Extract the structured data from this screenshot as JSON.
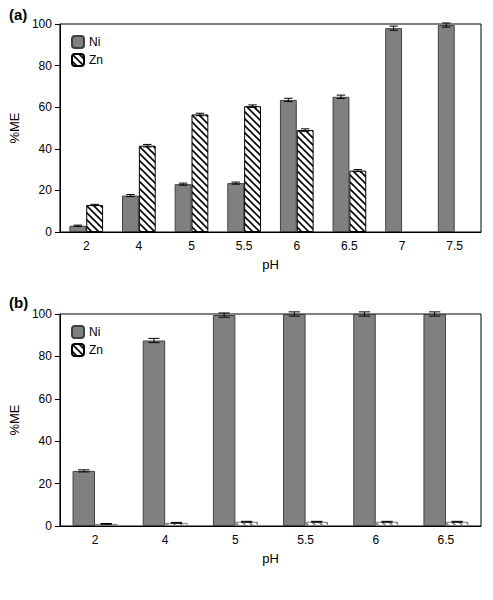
{
  "chart_data": [
    {
      "type": "bar",
      "title": "(a)",
      "x_label": "pH",
      "y_label": "%ME",
      "categories": [
        "2",
        "4",
        "5",
        "5.5",
        "6",
        "6.5",
        "7",
        "7.5"
      ],
      "series": [
        {
          "name": "Ni",
          "color": "#808080",
          "values": [
            3,
            17.5,
            23,
            23.5,
            63.5,
            65,
            98,
            99.5
          ],
          "errors": [
            0.3,
            0.5,
            0.5,
            0.5,
            0.8,
            0.8,
            1,
            1
          ]
        },
        {
          "name": "Zn",
          "color": "#000000",
          "values": [
            13,
            41.5,
            56.5,
            60.5,
            49,
            29.5,
            null,
            null
          ],
          "errors": [
            0.3,
            0.6,
            0.6,
            0.6,
            0.6,
            0.5,
            null,
            null
          ]
        }
      ],
      "ylim": [
        0,
        100
      ],
      "yticks": [
        0,
        20,
        40,
        60,
        80,
        100
      ],
      "legend": "upper left",
      "grid": false
    },
    {
      "type": "bar",
      "title": "(b)",
      "x_label": "pH",
      "y_label": "%ME",
      "categories": [
        "2",
        "4",
        "5",
        "5.5",
        "6",
        "6.5"
      ],
      "series": [
        {
          "name": "Ni",
          "color": "#808080",
          "values": [
            26,
            87.5,
            99.5,
            100,
            100,
            100
          ],
          "errors": [
            0.5,
            1,
            1,
            1,
            1,
            1
          ]
        },
        {
          "name": "Zn",
          "color": "#808080",
          "values": [
            1,
            1.5,
            2,
            2,
            2,
            2
          ],
          "errors": [
            0.2,
            0.2,
            0.2,
            0.2,
            0.2,
            0.2
          ]
        }
      ],
      "ylim": [
        0,
        100
      ],
      "yticks": [
        0,
        20,
        40,
        60,
        80,
        100
      ],
      "legend": "upper left",
      "grid": false
    }
  ]
}
